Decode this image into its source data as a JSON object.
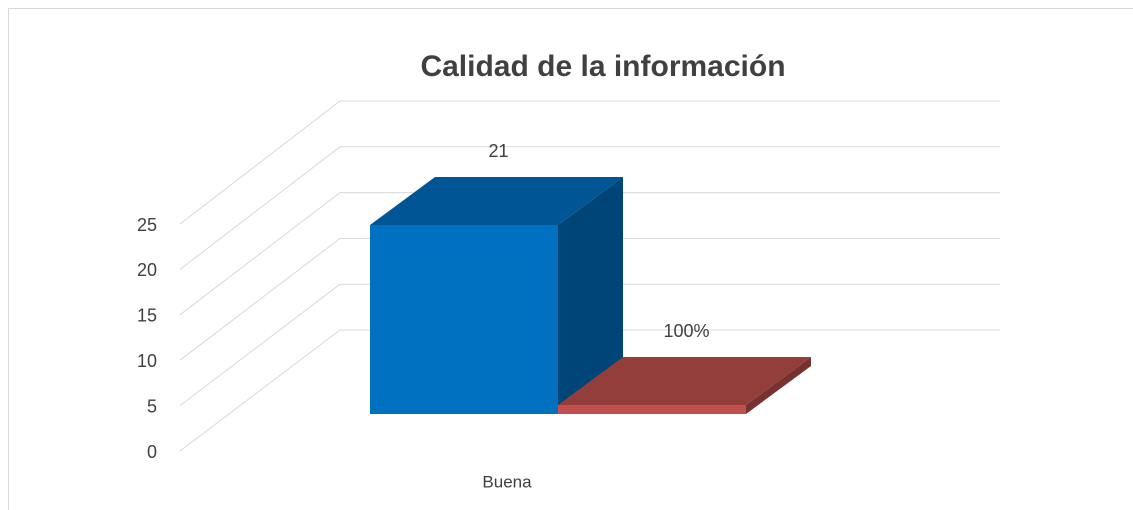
{
  "chart_data": {
    "type": "bar3d",
    "title": "Calidad de la información",
    "categories": [
      "Buena"
    ],
    "series": [
      {
        "color": "#0070c0",
        "values": [
          21
        ],
        "value_labels": [
          "21"
        ]
      },
      {
        "color": "#c0504d",
        "values": [
          1
        ],
        "value_labels": [
          "100%"
        ]
      }
    ],
    "ylim": [
      0,
      25
    ],
    "yticks": [
      0,
      5,
      10,
      15,
      20,
      25
    ],
    "grid": true
  }
}
